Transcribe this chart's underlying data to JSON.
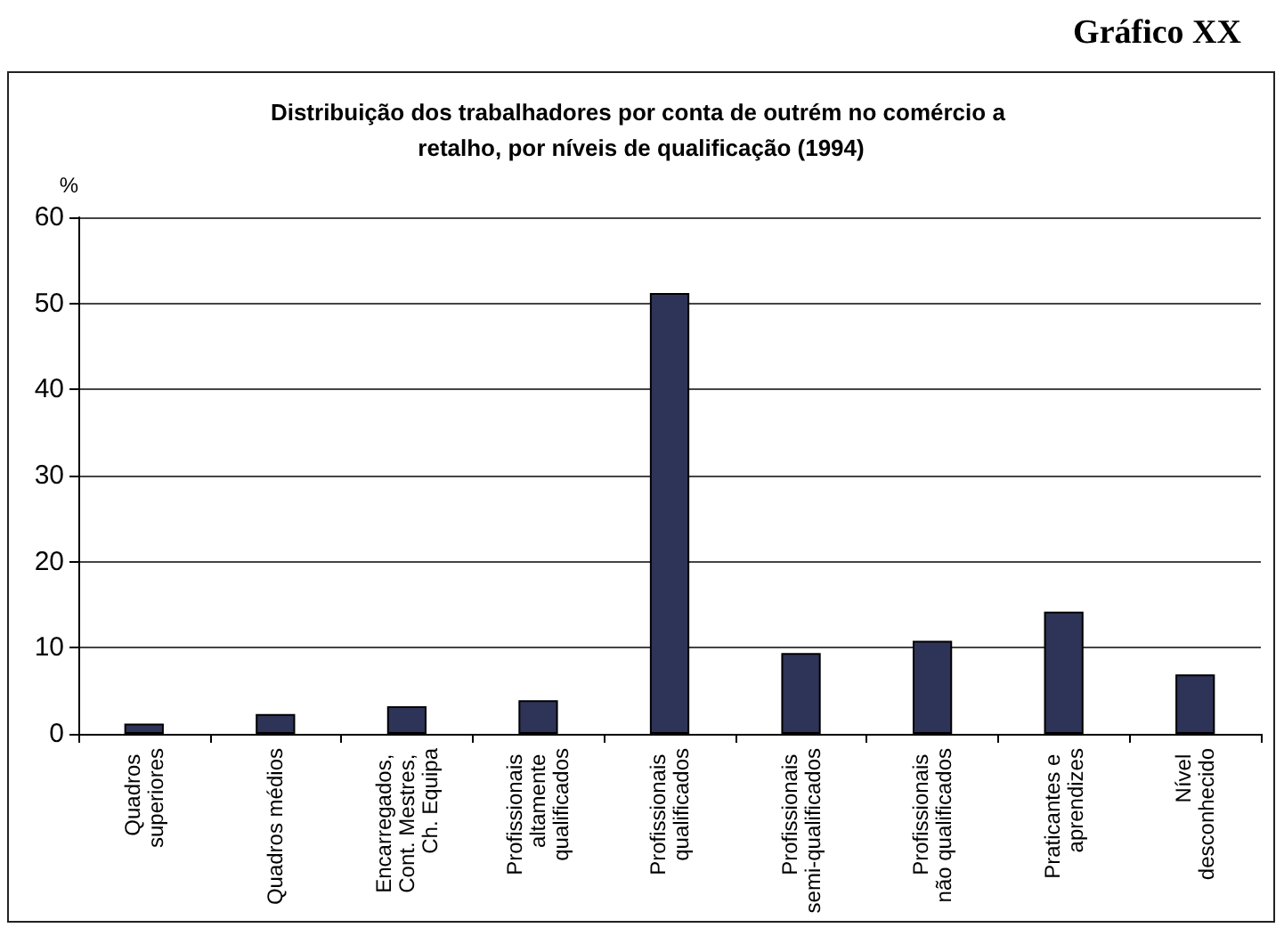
{
  "chart_data": {
    "type": "bar",
    "title": "Distribuição dos trabalhadores por conta de outrém no comércio a retalho, por níveis de qualificação (1994)",
    "ylabel": "%",
    "annotations": [
      "Gráfico XX"
    ],
    "categories": [
      "Quadros superiores",
      "Quadros médios",
      "Encarregados, Cont. Mestres, Ch. Equipa",
      "Profissionais altamente qualificados",
      "Profissionais qualificados",
      "Profissionais semi-qualificados",
      "Profissionais não qualificados",
      "Praticantes e aprendizes",
      "Nível desconhecido"
    ],
    "values": [
      1.2,
      2.3,
      3.2,
      3.9,
      51.2,
      9.4,
      10.8,
      14.2,
      6.9
    ],
    "color": "#2e3358",
    "ylim": [
      0,
      60
    ],
    "yticks": [
      0,
      10,
      20,
      30,
      40,
      50,
      60
    ],
    "grid": "y"
  }
}
